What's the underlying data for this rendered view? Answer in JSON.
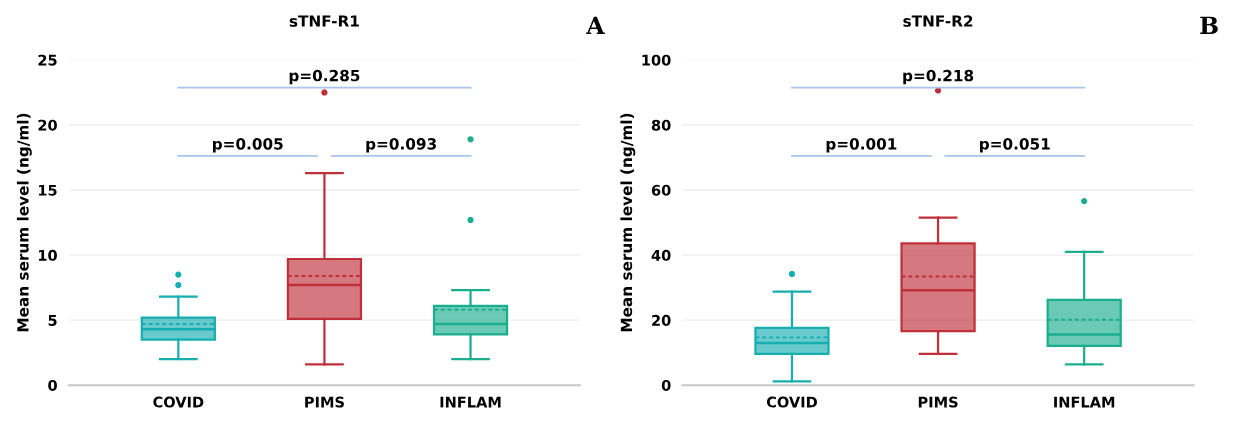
{
  "chart_data": [
    {
      "type": "box",
      "title": "sTNF-R1",
      "ylabel": "Mean serum level (ng/ml)",
      "categories": [
        "COVID",
        "PIMS",
        "INFLAM"
      ],
      "colors": [
        "#17aeb0",
        "#c0303a",
        "#1aae8e"
      ],
      "ylim": [
        0,
        25
      ],
      "yticks": [
        0,
        5,
        10,
        15,
        20,
        25
      ],
      "grid": "y",
      "annotations": [
        "p=0.285",
        "p=0.005",
        "p=0.093",
        "A"
      ],
      "boxes": [
        {
          "low": 2.0,
          "q1": 3.5,
          "median": 4.3,
          "q3": 5.2,
          "high": 6.8,
          "mean": 4.7,
          "outliers": [
            7.7,
            8.5
          ]
        },
        {
          "low": 1.6,
          "q1": 5.1,
          "median": 7.7,
          "q3": 9.7,
          "high": 16.3,
          "mean": 8.4,
          "outliers": [
            22.5
          ]
        },
        {
          "low": 2.0,
          "q1": 3.9,
          "median": 4.7,
          "q3": 6.1,
          "high": 7.3,
          "mean": 5.8,
          "outliers": [
            12.7,
            18.9
          ]
        }
      ]
    },
    {
      "type": "box",
      "title": "sTNF-R2",
      "ylabel": "Mean serum level (ng/ml)",
      "categories": [
        "COVID",
        "PIMS",
        "INFLAM"
      ],
      "colors": [
        "#17aeb0",
        "#c0303a",
        "#1aae8e"
      ],
      "ylim": [
        0,
        100
      ],
      "yticks": [
        0,
        20,
        40,
        60,
        80,
        100
      ],
      "grid": "y",
      "annotations": [
        "p=0.218",
        "p=0.001",
        "p=0.051",
        "B"
      ],
      "boxes": [
        {
          "low": 1.2,
          "q1": 9.6,
          "median": 13,
          "q3": 17.6,
          "high": 28.8,
          "mean": 14.7,
          "outliers": [
            34.2
          ]
        },
        {
          "low": 9.6,
          "q1": 16.6,
          "median": 29.2,
          "q3": 43.6,
          "high": 51.5,
          "mean": 33.4,
          "outliers": [
            90.6
          ]
        },
        {
          "low": 6.4,
          "q1": 12.1,
          "median": 15.6,
          "q3": 26.2,
          "high": 41,
          "mean": 20.1,
          "outliers": [
            56.6
          ]
        }
      ]
    }
  ]
}
